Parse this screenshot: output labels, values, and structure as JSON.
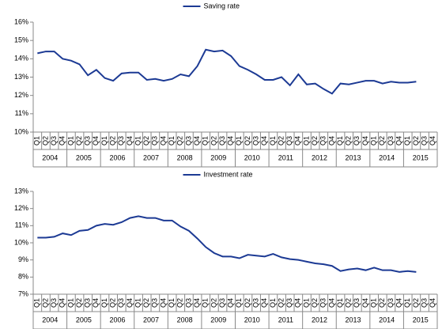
{
  "chart_data": [
    {
      "type": "line",
      "categories": [
        "Q1",
        "Q2",
        "Q3",
        "Q4",
        "Q1",
        "Q2",
        "Q3",
        "Q4",
        "Q1",
        "Q2",
        "Q3",
        "Q4",
        "Q1",
        "Q2",
        "Q3",
        "Q4",
        "Q1",
        "Q2",
        "Q3",
        "Q4",
        "Q1",
        "Q2",
        "Q3",
        "Q4",
        "Q1",
        "Q2",
        "Q3",
        "Q4",
        "Q1",
        "Q2",
        "Q3",
        "Q4",
        "Q1",
        "Q2",
        "Q3",
        "Q4",
        "Q1",
        "Q2",
        "Q3",
        "Q4",
        "Q1",
        "Q2",
        "Q3",
        "Q4",
        "Q1",
        "Q2",
        "Q3",
        "Q4"
      ],
      "years": [
        "2004",
        "2005",
        "2006",
        "2007",
        "2008",
        "2009",
        "2010",
        "2011",
        "2012",
        "2013",
        "2014",
        "2015"
      ],
      "series": [
        {
          "name": "Saving rate",
          "color": "#1c3a94",
          "values": [
            14.3,
            14.4,
            14.4,
            14.0,
            13.9,
            13.7,
            13.1,
            13.4,
            12.95,
            12.8,
            13.2,
            13.25,
            13.25,
            12.85,
            12.9,
            12.8,
            12.9,
            13.15,
            13.05,
            13.6,
            14.5,
            14.4,
            14.45,
            14.15,
            13.6,
            13.4,
            13.15,
            12.85,
            12.85,
            13.0,
            12.55,
            13.15,
            12.6,
            12.65,
            12.35,
            12.1,
            12.65,
            12.6,
            12.7,
            12.8,
            12.8,
            12.65,
            12.75,
            12.7,
            12.7,
            12.75,
            null,
            null
          ]
        }
      ],
      "ylim": [
        10,
        16
      ],
      "yticks": [
        {
          "value": 10,
          "label": "10%"
        },
        {
          "value": 11,
          "label": "11%"
        },
        {
          "value": 12,
          "label": "12%"
        },
        {
          "value": 13,
          "label": "13%"
        },
        {
          "value": 14,
          "label": "14%"
        },
        {
          "value": 15,
          "label": "15%"
        },
        {
          "value": 16,
          "label": "16%"
        }
      ],
      "legend": "top"
    },
    {
      "type": "line",
      "categories": [
        "Q1",
        "Q2",
        "Q3",
        "Q4",
        "Q1",
        "Q2",
        "Q3",
        "Q4",
        "Q1",
        "Q2",
        "Q3",
        "Q4",
        "Q1",
        "Q2",
        "Q3",
        "Q4",
        "Q1",
        "Q2",
        "Q3",
        "Q4",
        "Q1",
        "Q2",
        "Q3",
        "Q4",
        "Q1",
        "Q2",
        "Q3",
        "Q4",
        "Q1",
        "Q2",
        "Q3",
        "Q4",
        "Q1",
        "Q2",
        "Q3",
        "Q4",
        "Q1",
        "Q2",
        "Q3",
        "Q4",
        "Q1",
        "Q2",
        "Q3",
        "Q4",
        "Q1",
        "Q2",
        "Q3",
        "Q4"
      ],
      "years": [
        "2004",
        "2005",
        "2006",
        "2007",
        "2008",
        "2009",
        "2010",
        "2011",
        "2012",
        "2013",
        "2014",
        "2015"
      ],
      "series": [
        {
          "name": "Investment rate",
          "color": "#1c3a94",
          "values": [
            10.3,
            10.3,
            10.35,
            10.55,
            10.45,
            10.7,
            10.75,
            11.0,
            11.1,
            11.05,
            11.2,
            11.45,
            11.55,
            11.45,
            11.45,
            11.3,
            11.3,
            10.95,
            10.7,
            10.25,
            9.75,
            9.4,
            9.2,
            9.2,
            9.1,
            9.3,
            9.25,
            9.2,
            9.35,
            9.15,
            9.05,
            9.0,
            8.9,
            8.8,
            8.75,
            8.65,
            8.35,
            8.45,
            8.5,
            8.4,
            8.55,
            8.4,
            8.4,
            8.3,
            8.35,
            8.3,
            null,
            null
          ]
        }
      ],
      "ylim": [
        7,
        13
      ],
      "yticks": [
        {
          "value": 7,
          "label": "7%"
        },
        {
          "value": 8,
          "label": "8%"
        },
        {
          "value": 9,
          "label": "9%"
        },
        {
          "value": 10,
          "label": "10%"
        },
        {
          "value": 11,
          "label": "11%"
        },
        {
          "value": 12,
          "label": "12%"
        },
        {
          "value": 13,
          "label": "13%"
        }
      ],
      "legend": "top"
    }
  ]
}
